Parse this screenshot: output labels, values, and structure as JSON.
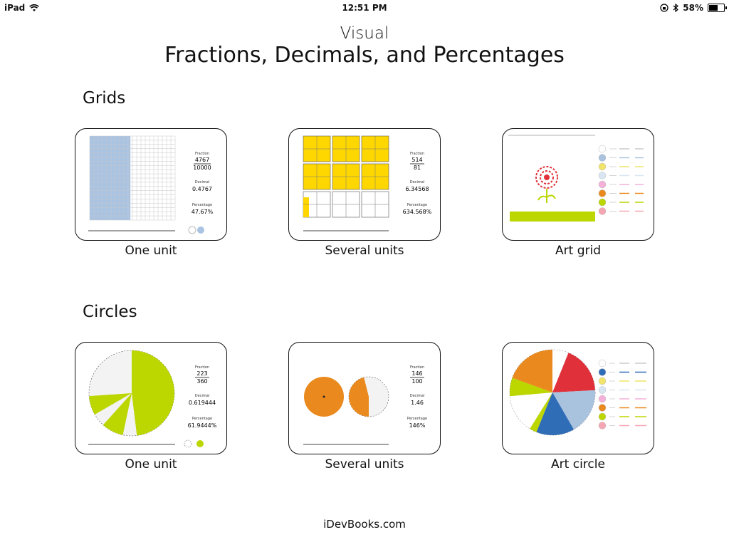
{
  "status": {
    "device": "iPad",
    "time": "12:51 PM",
    "battery": "58%",
    "battery_level": 0.58
  },
  "header": {
    "line1": "Visual",
    "line2": "Fractions, Decimals, and Percentages"
  },
  "sections": {
    "grids": {
      "heading": "Grids",
      "cards": [
        {
          "label": "One unit",
          "fraction_caption": "Fraction",
          "numerator": "4767",
          "denominator": "10000",
          "decimal_caption": "Decimal",
          "decimal": "0.4767",
          "percent_caption": "Percentage",
          "percent": "47.67%"
        },
        {
          "label": "Several units",
          "fraction_caption": "Fraction",
          "numerator": "514",
          "denominator": "81",
          "decimal_caption": "Decimal",
          "decimal": "6.34568",
          "percent_caption": "Percentage",
          "percent": "634.568%"
        },
        {
          "label": "Art grid"
        }
      ]
    },
    "circles": {
      "heading": "Circles",
      "cards": [
        {
          "label": "One unit",
          "fraction_caption": "Fraction",
          "numerator": "223",
          "denominator": "360",
          "decimal_caption": "Decimal",
          "decimal": "0.619444",
          "percent_caption": "Percentage",
          "percent": "61.9444%"
        },
        {
          "label": "Several units",
          "fraction_caption": "Fraction",
          "numerator": "146",
          "denominator": "100",
          "decimal_caption": "Decimal",
          "decimal": "1.46",
          "percent_caption": "Percentage",
          "percent": "146%"
        },
        {
          "label": "Art circle"
        }
      ]
    }
  },
  "colors": {
    "blue_fill": "#a9c3e3",
    "yellow": "#ffd700",
    "lime": "#bcd600",
    "orange": "#ea8a1e",
    "red": "#e0303a",
    "blue": "#2f6db7",
    "light_blue": "#a9c3de",
    "green": "#bcd600",
    "pink": "#f6a6b2"
  },
  "footer": "iDevBooks.com"
}
